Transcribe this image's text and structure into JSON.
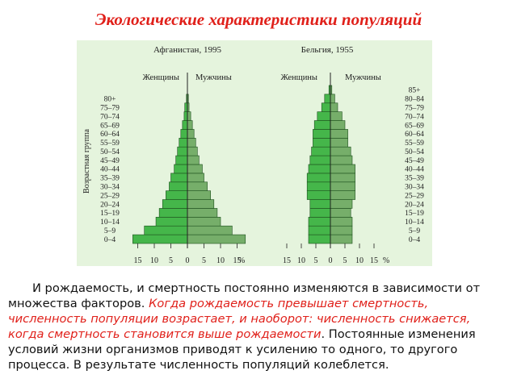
{
  "title": "Экологические характеристики популяций",
  "figure": {
    "y_axis_title": "Возрастная группа",
    "unit": "%",
    "colors": {
      "women": "#45b64a",
      "men": "#76ae6a",
      "background": "#e5f4dd",
      "outline": "#1d4f1d"
    },
    "pyramids": [
      {
        "caption": "Афганистан, 1995",
        "women_label": "Женщины",
        "men_label": "Мужчины",
        "age_groups": [
          "0–4",
          "5–9",
          "10–14",
          "15–19",
          "20–24",
          "25–29",
          "30–34",
          "35–39",
          "40–44",
          "45–49",
          "50–54",
          "55–59",
          "60–64",
          "65–69",
          "70–74",
          "75–79",
          "80+"
        ],
        "x_ticks": [
          "15",
          "10",
          "5",
          "0",
          "5",
          "10",
          "15"
        ],
        "chart_data": {
          "type": "bar",
          "categories": [
            "0–4",
            "5–9",
            "10–14",
            "15–19",
            "20–24",
            "25–29",
            "30–34",
            "35–39",
            "40–44",
            "45–49",
            "50–54",
            "55–59",
            "60–64",
            "65–69",
            "70–74",
            "75–79",
            "80+"
          ],
          "series": [
            {
              "name": "Женщины",
              "values": [
                16.5,
                13,
                9.5,
                8.5,
                7.5,
                6.5,
                5.5,
                5,
                4,
                3.5,
                3,
                2.5,
                2,
                1.5,
                1,
                0.8,
                0.3
              ]
            },
            {
              "name": "Мужчины",
              "values": [
                17.5,
                13.5,
                10,
                9,
                8,
                7,
                6,
                5,
                4.5,
                3.5,
                3,
                2.5,
                2,
                1.5,
                1,
                0.5,
                0.3
              ]
            }
          ],
          "xlim": [
            -17,
            17
          ]
        }
      },
      {
        "caption": "Бельгия, 1955",
        "women_label": "Женщины",
        "men_label": "Мужчины",
        "age_groups": [
          "0–4",
          "5–9",
          "10–14",
          "15–19",
          "20–24",
          "25–29",
          "30–34",
          "35–39",
          "40–44",
          "45–49",
          "50–54",
          "55–59",
          "60–64",
          "65–69",
          "70–74",
          "75–79",
          "80–84",
          "85+"
        ],
        "x_ticks": [
          "15",
          "10",
          "5",
          "0",
          "5",
          "10",
          "15"
        ],
        "chart_data": {
          "type": "bar",
          "categories": [
            "0–4",
            "5–9",
            "10–14",
            "15–19",
            "20–24",
            "25–29",
            "30–34",
            "35–39",
            "40–44",
            "45–49",
            "50–54",
            "55–59",
            "60–64",
            "65–69",
            "70–74",
            "75–79",
            "80–84",
            "85+"
          ],
          "series": [
            {
              "name": "Женщины",
              "values": [
                7.5,
                7.5,
                7.5,
                7,
                7,
                8,
                8,
                8,
                7.5,
                7,
                6.5,
                6,
                6,
                5.5,
                4.5,
                3,
                2,
                0.5
              ]
            },
            {
              "name": "Мужчины",
              "values": [
                7.5,
                7.5,
                7.5,
                7,
                7.5,
                8.5,
                8.5,
                8.5,
                8.5,
                7.5,
                7,
                6,
                6,
                5,
                4,
                2.5,
                1.5,
                0.5
              ]
            }
          ],
          "xlim": [
            -17,
            17
          ]
        }
      }
    ]
  },
  "text": {
    "part1": "И рождаемость, и смертность постоянно изменяются в зависимости от множества факторов. ",
    "part2": "Когда рождаемость превышает смертность, численность популяции возрастает, и наоборот: численность снижается, когда смертность становится выше рождаемости",
    "part3": ". Постоянные изменения условий жизни организмов приводят к усилению то одного, то другого процесса. В результате численность популяций колеблется."
  }
}
